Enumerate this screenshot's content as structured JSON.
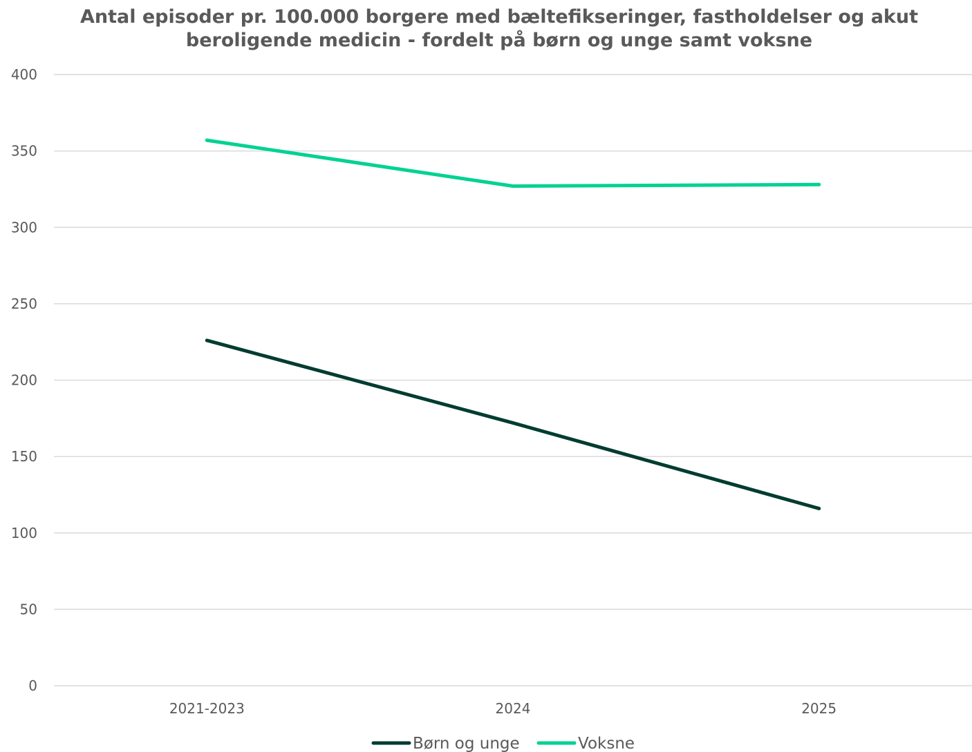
{
  "chart_data": {
    "type": "line",
    "title_lines": [
      "Antal episoder pr. 100.000 borgere med bæltefikseringer, fastholdelser og akut",
      "beroligende medicin - fordelt på børn og unge samt voksne"
    ],
    "categories": [
      "2021-2023",
      "2024",
      "2025"
    ],
    "series": [
      {
        "name": "Børn og unge",
        "values": [
          226,
          172,
          116
        ],
        "color": "#003c32"
      },
      {
        "name": "Voksne",
        "values": [
          357,
          327,
          328
        ],
        "color": "#00d291"
      }
    ],
    "ylim": [
      0,
      400
    ],
    "yticks": [
      0,
      50,
      100,
      150,
      200,
      250,
      300,
      350,
      400
    ],
    "grid": true,
    "legend_position": "bottom-center"
  }
}
